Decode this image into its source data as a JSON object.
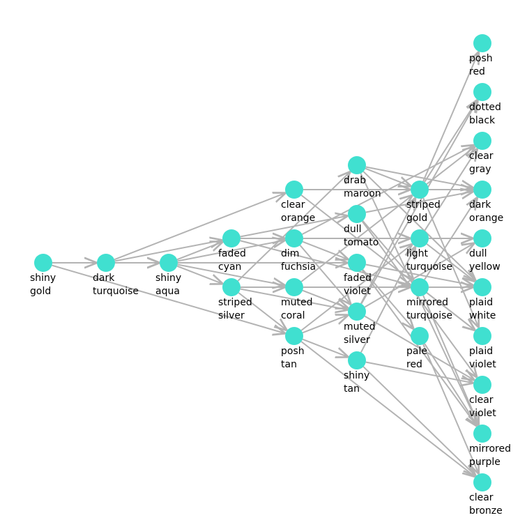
{
  "nodes": [
    {
      "label": [
        "shiny",
        "gold"
      ]
    },
    {
      "label": [
        "dark",
        "turquoise"
      ]
    },
    {
      "label": [
        "shiny",
        "aqua"
      ]
    },
    {
      "label": [
        "faded",
        "cyan"
      ]
    },
    {
      "label": [
        "striped",
        "silver"
      ]
    },
    {
      "label": [
        "clear",
        "orange"
      ]
    },
    {
      "label": [
        "dim",
        "fuchsia"
      ]
    },
    {
      "label": [
        "muted",
        "coral"
      ]
    },
    {
      "label": [
        "posh",
        "tan"
      ]
    },
    {
      "label": [
        "drab",
        "maroon"
      ]
    },
    {
      "label": [
        "dull",
        "tomato"
      ]
    },
    {
      "label": [
        "faded",
        "violet"
      ]
    },
    {
      "label": [
        "muted",
        "silver"
      ]
    },
    {
      "label": [
        "shiny",
        "tan"
      ]
    },
    {
      "label": [
        "striped",
        "gold"
      ]
    },
    {
      "label": [
        "light",
        "turquoise"
      ]
    },
    {
      "label": [
        "mirrored",
        "turquoise"
      ]
    },
    {
      "label": [
        "pale",
        "red"
      ]
    },
    {
      "label": [
        "posh",
        "red"
      ]
    },
    {
      "label": [
        "dotted",
        "black"
      ]
    },
    {
      "label": [
        "clear",
        "gray"
      ]
    },
    {
      "label": [
        "dark",
        "orange"
      ]
    },
    {
      "label": [
        "dull",
        "yellow"
      ]
    },
    {
      "label": [
        "plaid",
        "white"
      ]
    },
    {
      "label": [
        "plaid",
        "violet"
      ]
    },
    {
      "label": [
        "clear",
        "violet"
      ]
    },
    {
      "label": [
        "mirrored",
        "purple"
      ]
    },
    {
      "label": [
        "clear",
        "bronze"
      ]
    }
  ],
  "edges": [
    [
      0,
      1
    ],
    [
      0,
      2
    ],
    [
      0,
      8
    ],
    [
      1,
      2
    ],
    [
      1,
      5
    ],
    [
      1,
      3
    ],
    [
      2,
      3
    ],
    [
      2,
      4
    ],
    [
      2,
      6
    ],
    [
      2,
      7
    ],
    [
      2,
      11
    ],
    [
      3,
      6
    ],
    [
      3,
      10
    ],
    [
      3,
      16
    ],
    [
      4,
      7
    ],
    [
      4,
      12
    ],
    [
      4,
      8
    ],
    [
      4,
      9
    ],
    [
      5,
      14
    ],
    [
      5,
      24
    ],
    [
      6,
      12
    ],
    [
      6,
      15
    ],
    [
      6,
      11
    ],
    [
      6,
      20
    ],
    [
      7,
      12
    ],
    [
      7,
      16
    ],
    [
      7,
      14
    ],
    [
      8,
      13
    ],
    [
      8,
      12
    ],
    [
      8,
      27
    ],
    [
      8,
      15
    ],
    [
      9,
      14
    ],
    [
      9,
      21
    ],
    [
      9,
      23
    ],
    [
      9,
      26
    ],
    [
      10,
      16
    ],
    [
      10,
      25
    ],
    [
      10,
      21
    ],
    [
      11,
      17
    ],
    [
      11,
      23
    ],
    [
      11,
      26
    ],
    [
      12,
      14
    ],
    [
      12,
      22
    ],
    [
      12,
      25
    ],
    [
      12,
      19
    ],
    [
      13,
      25
    ],
    [
      13,
      27
    ],
    [
      13,
      15
    ],
    [
      14,
      18
    ],
    [
      14,
      19
    ],
    [
      14,
      20
    ],
    [
      14,
      21
    ],
    [
      14,
      24
    ],
    [
      15,
      22
    ],
    [
      15,
      23
    ],
    [
      15,
      20
    ],
    [
      16,
      23
    ],
    [
      16,
      24
    ],
    [
      16,
      21
    ],
    [
      16,
      26
    ],
    [
      17,
      27
    ],
    [
      17,
      26
    ]
  ]
}
